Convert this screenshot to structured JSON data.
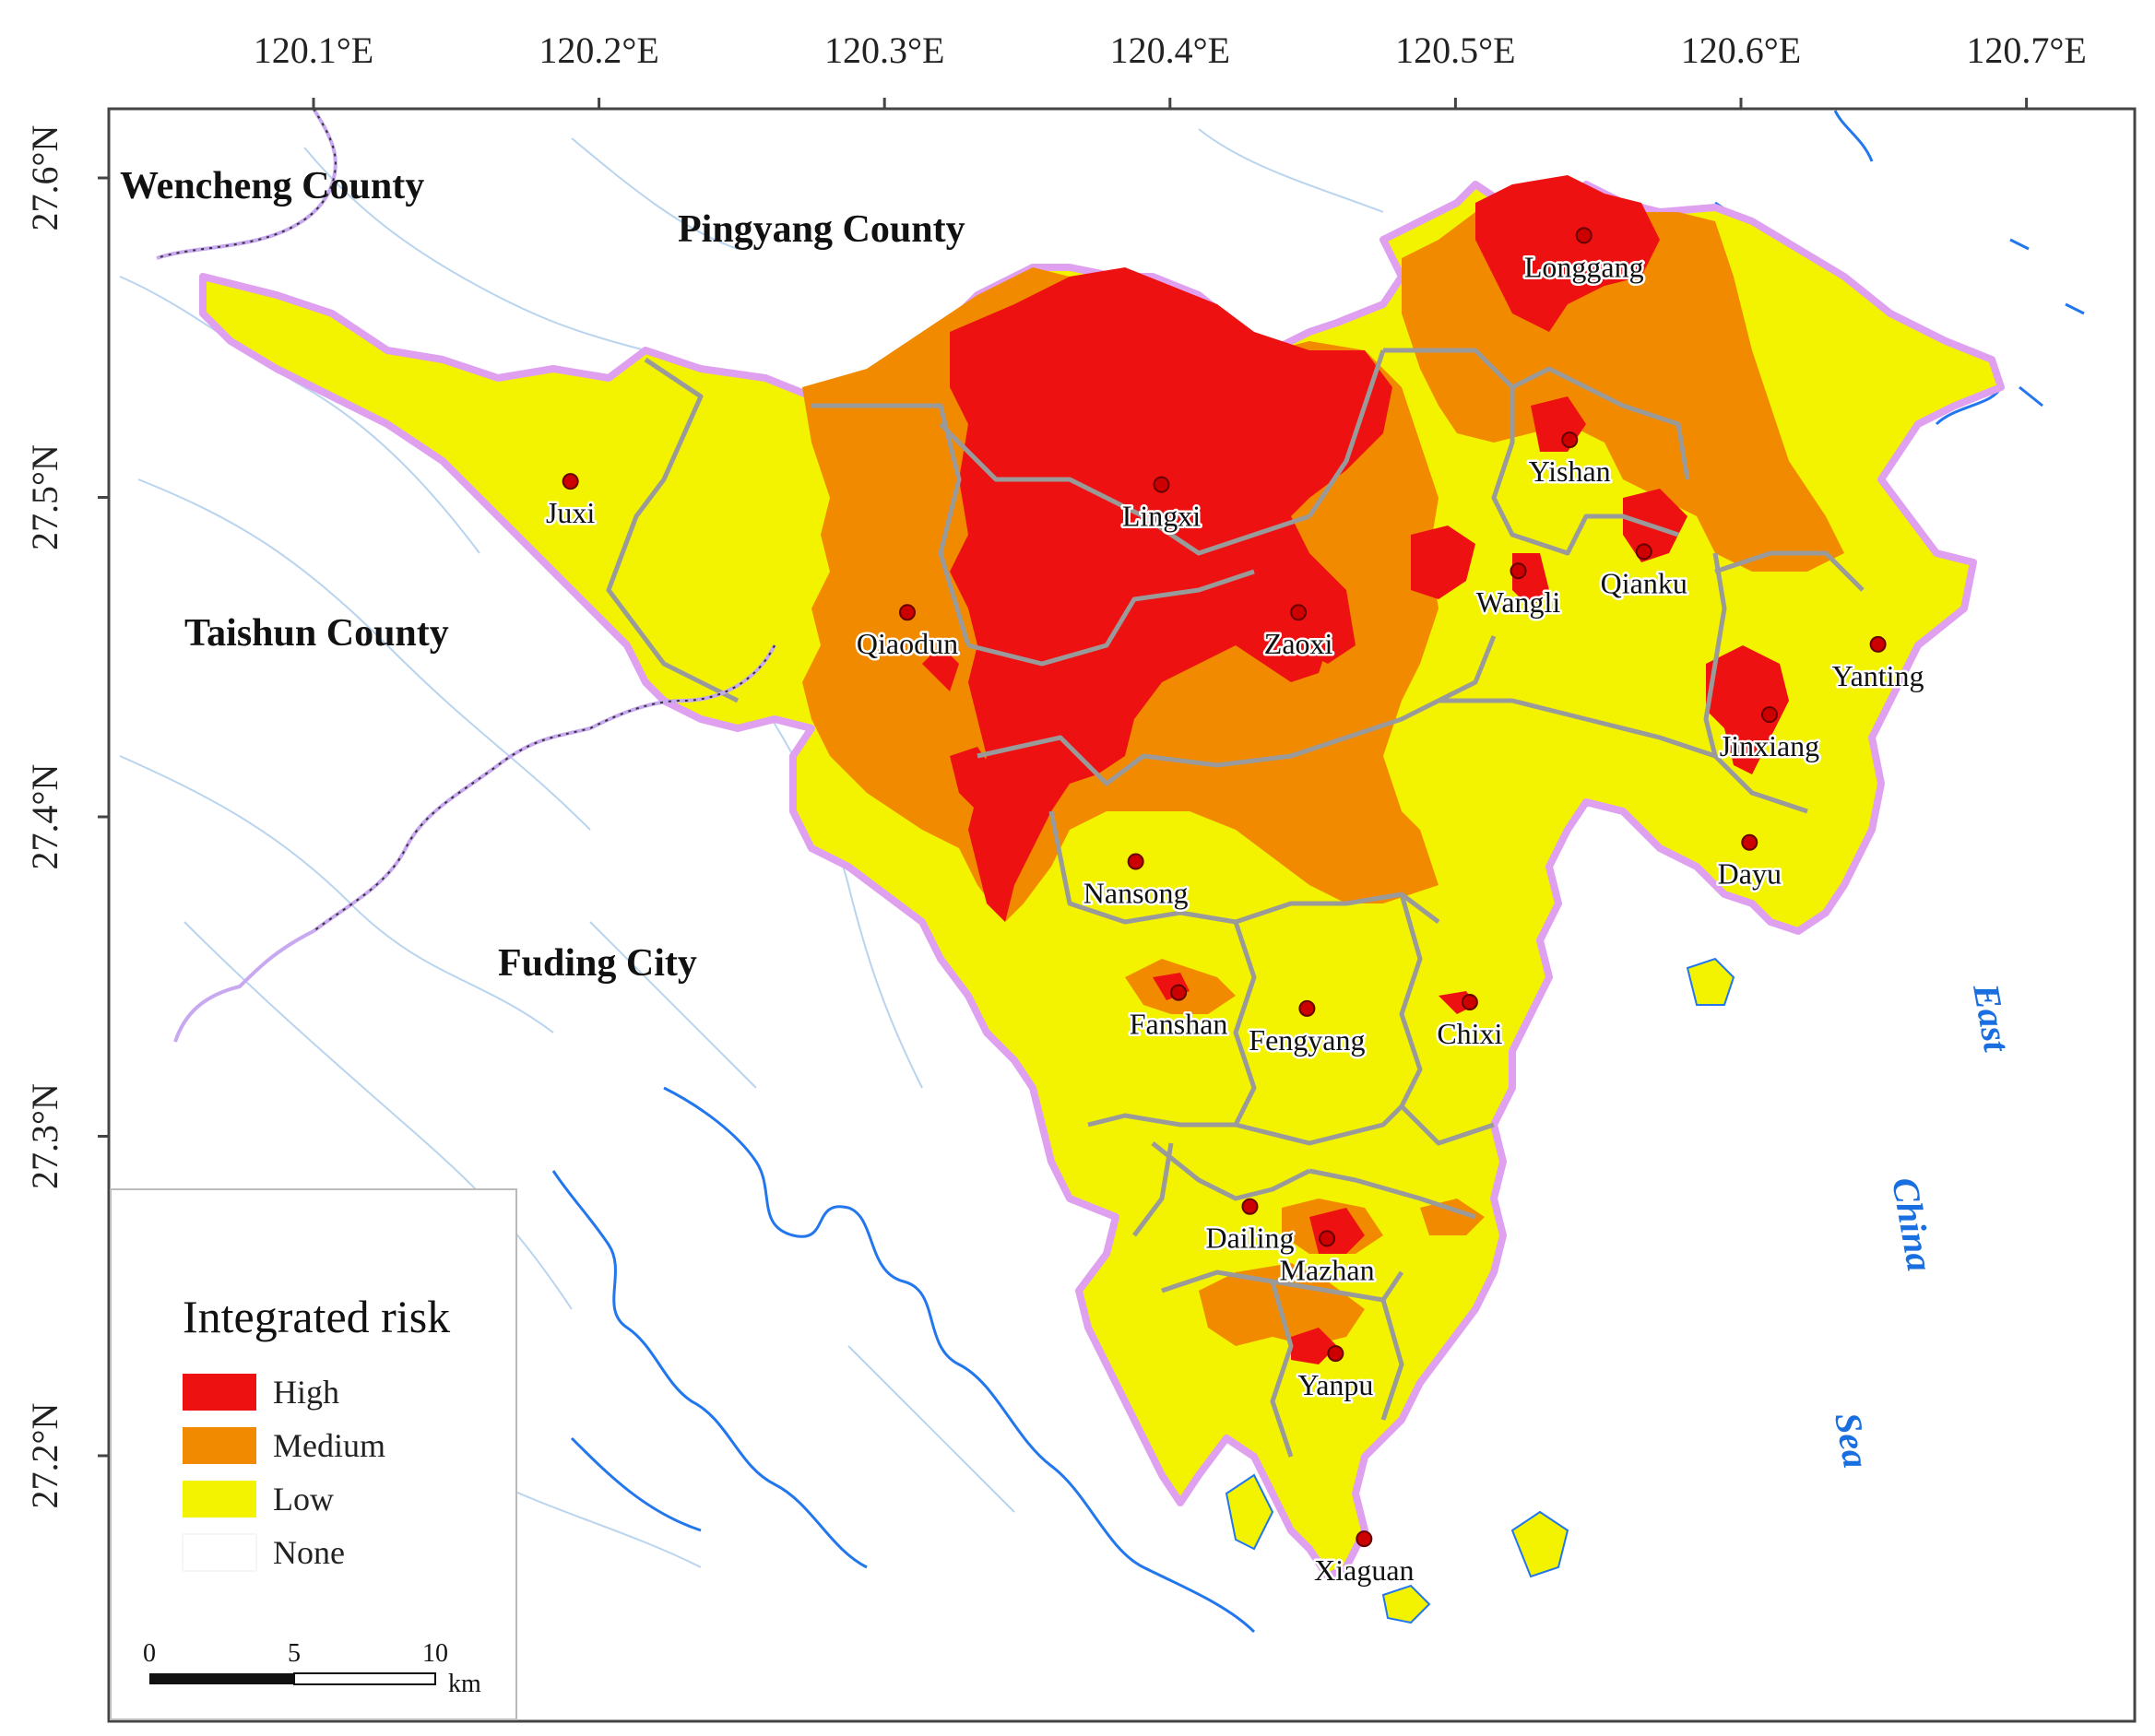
{
  "map": {
    "axes": {
      "longitude_ticks": [
        "120.1°E",
        "120.2°E",
        "120.3°E",
        "120.4°E",
        "120.5°E",
        "120.6°E",
        "120.7°E"
      ],
      "latitude_ticks": [
        "27.6°N",
        "27.5°N",
        "27.4°N",
        "27.3°N",
        "27.2°N"
      ]
    },
    "counties": [
      {
        "id": "wencheng",
        "label": "Wencheng County"
      },
      {
        "id": "pingyang",
        "label": "Pingyang County"
      },
      {
        "id": "taishun",
        "label": "Taishun County"
      },
      {
        "id": "fuding",
        "label": "Fuding City"
      }
    ],
    "sea_label": [
      "East",
      "China",
      "Sea"
    ],
    "towns": [
      {
        "id": "longgang",
        "label": "Longgang",
        "lon": 120.545,
        "lat": 27.582
      },
      {
        "id": "yishan",
        "label": "Yishan",
        "lon": 120.54,
        "lat": 27.518
      },
      {
        "id": "juxi",
        "label": "Juxi",
        "lon": 120.19,
        "lat": 27.505
      },
      {
        "id": "lingxi",
        "label": "Lingxi",
        "lon": 120.397,
        "lat": 27.504
      },
      {
        "id": "qianku",
        "label": "Qianku",
        "lon": 120.566,
        "lat": 27.483
      },
      {
        "id": "wangli",
        "label": "Wangli",
        "lon": 120.522,
        "lat": 27.477
      },
      {
        "id": "qiaodun",
        "label": "Qiaodun",
        "lon": 120.308,
        "lat": 27.464
      },
      {
        "id": "zaoxi",
        "label": "Zaoxi",
        "lon": 120.445,
        "lat": 27.464
      },
      {
        "id": "yanting",
        "label": "Yanting",
        "lon": 120.648,
        "lat": 27.454
      },
      {
        "id": "jinxiang",
        "label": "Jinxiang",
        "lon": 120.61,
        "lat": 27.432
      },
      {
        "id": "dayu",
        "label": "Dayu",
        "lon": 120.603,
        "lat": 27.392
      },
      {
        "id": "nansong",
        "label": "Nansong",
        "lon": 120.388,
        "lat": 27.386
      },
      {
        "id": "fanshan",
        "label": "Fanshan",
        "lon": 120.403,
        "lat": 27.345
      },
      {
        "id": "fengyang",
        "label": "Fengyang",
        "lon": 120.448,
        "lat": 27.34
      },
      {
        "id": "chixi",
        "label": "Chixi",
        "lon": 120.505,
        "lat": 27.342
      },
      {
        "id": "dailing",
        "label": "Dailing",
        "lon": 120.428,
        "lat": 27.278
      },
      {
        "id": "mazhan",
        "label": "Mazhan",
        "lon": 120.455,
        "lat": 27.268
      },
      {
        "id": "yanpu",
        "label": "Yanpu",
        "lon": 120.458,
        "lat": 27.232
      },
      {
        "id": "xiaguan",
        "label": "Xiaguan",
        "lon": 120.468,
        "lat": 27.174
      }
    ],
    "legend": {
      "title": "Integrated risk",
      "items": [
        {
          "label": "High",
          "color": "#ee1111"
        },
        {
          "label": "Medium",
          "color": "#f28a00"
        },
        {
          "label": "Low",
          "color": "#f3f300"
        },
        {
          "label": "None",
          "color": "#ffffff"
        }
      ]
    },
    "scale_bar": {
      "ticks": [
        "0",
        "5",
        "10"
      ],
      "unit": "km"
    },
    "colors": {
      "high": "#ee1111",
      "medium": "#f28a00",
      "low": "#f3f300",
      "water": "#2277ee",
      "county_border": "#e0a0f0",
      "township_border": "#9a9a9a"
    }
  }
}
